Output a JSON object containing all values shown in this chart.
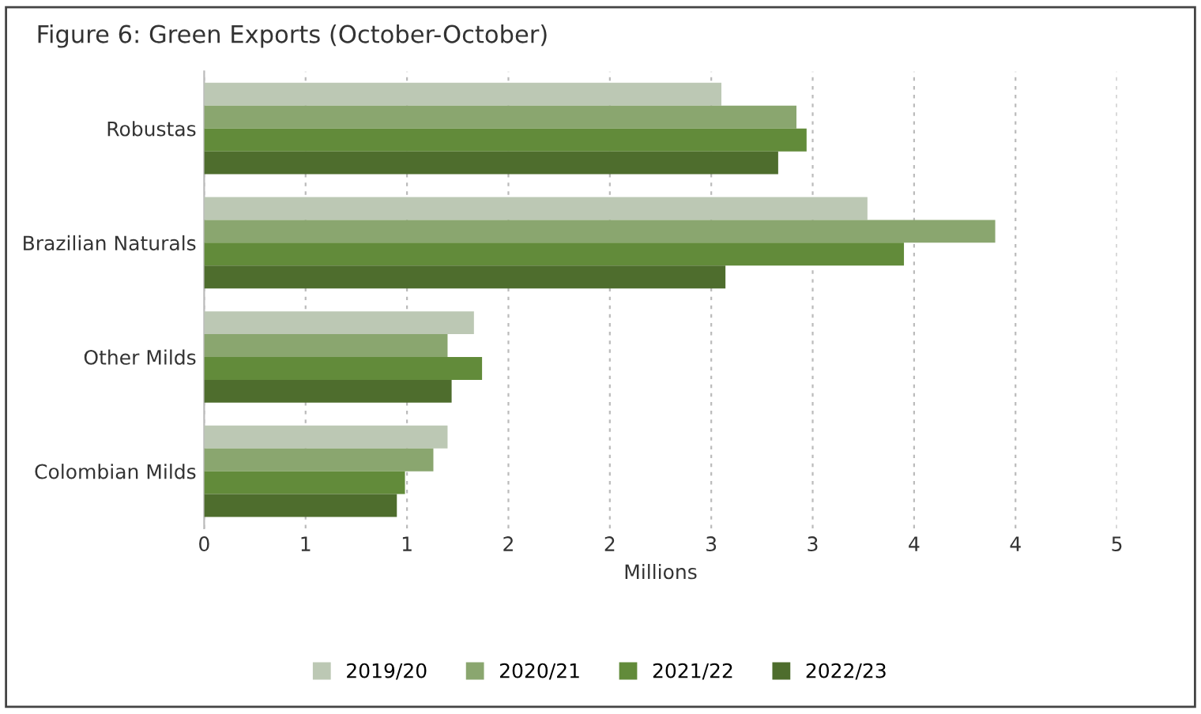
{
  "chart_data": {
    "type": "bar",
    "orientation": "horizontal",
    "title": "Figure 6: Green Exports (October-October)",
    "xlabel": "Millions",
    "categories": [
      "Robustas",
      "Brazilian Naturals",
      "Other Milds",
      "Colombian Milds"
    ],
    "series": [
      {
        "name": "2019/20",
        "color": "#bcc8b4",
        "values": [
          2.55,
          3.27,
          1.33,
          1.2
        ]
      },
      {
        "name": "2020/21",
        "color": "#8aa66f",
        "values": [
          2.92,
          3.9,
          1.2,
          1.13
        ]
      },
      {
        "name": "2021/22",
        "color": "#628b3a",
        "values": [
          2.97,
          3.45,
          1.37,
          0.99
        ]
      },
      {
        "name": "2022/23",
        "color": "#4e6d2d",
        "values": [
          2.83,
          2.57,
          1.22,
          0.95
        ]
      }
    ],
    "xlim": [
      0,
      4.5
    ],
    "xticks": [
      0,
      {
        "value": 0.5,
        "label": "1"
      },
      1,
      {
        "value": 1.5,
        "label": "2"
      },
      2,
      {
        "value": 2.5,
        "label": "3"
      },
      3,
      {
        "value": 3.5,
        "label": "4"
      },
      4,
      {
        "value": 4.5,
        "label": "5"
      }
    ],
    "grid": "x",
    "legend": "bottom"
  }
}
